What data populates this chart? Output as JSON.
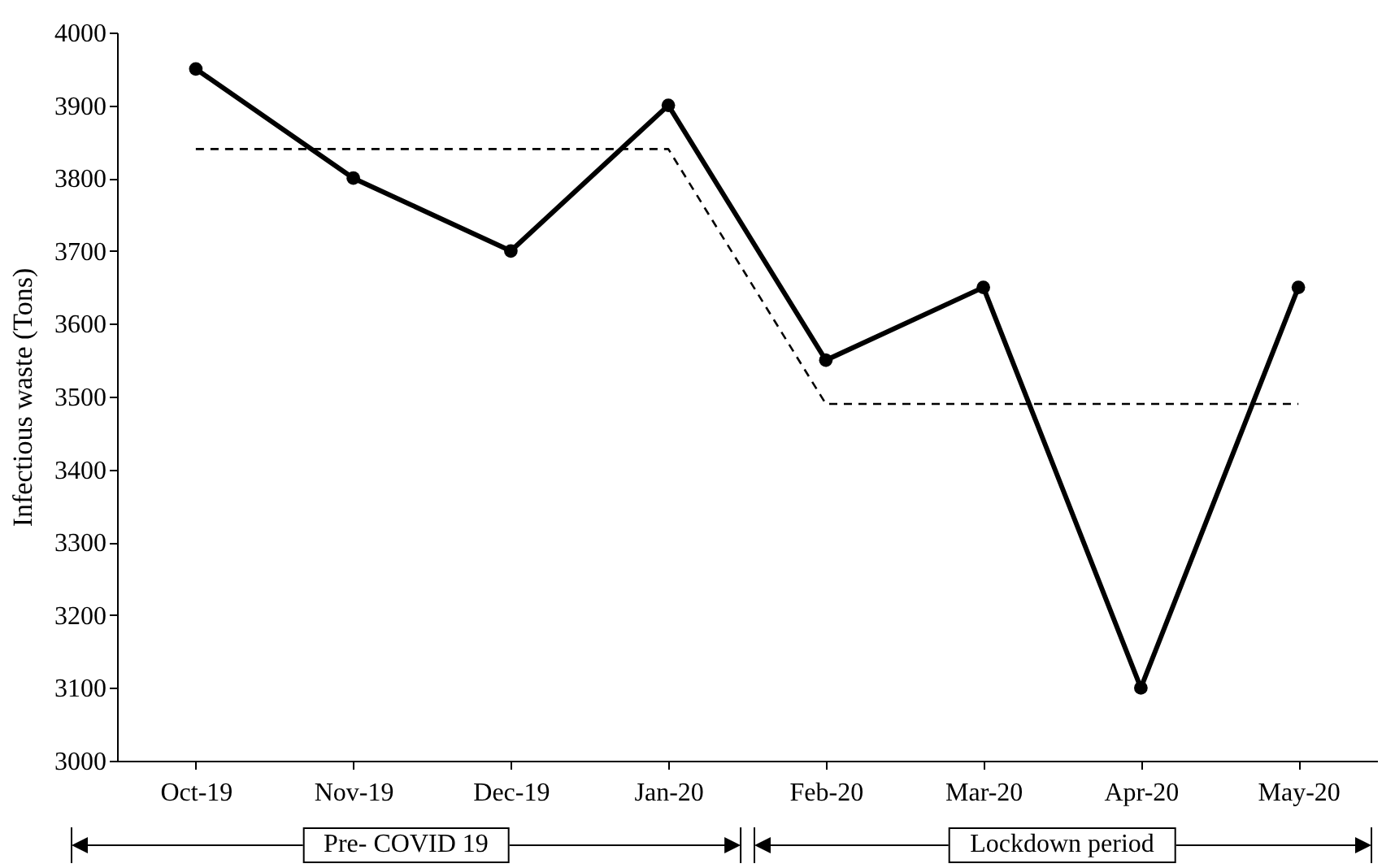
{
  "chart_data": {
    "type": "line",
    "ylabel": "Infectious waste (Tons)",
    "categories": [
      "Oct-19",
      "Nov-19",
      "Dec-19",
      "Jan-20",
      "Feb-20",
      "Mar-20",
      "Apr-20",
      "May-20"
    ],
    "series": [
      {
        "color": "#000000",
        "marker": "circle",
        "line_style": "solid",
        "values": [
          3950,
          3800,
          3700,
          3900,
          3550,
          3650,
          3100,
          3650
        ]
      },
      {
        "color": "#000000",
        "marker": "none",
        "line_style": "dashed",
        "values": [
          3840,
          3840,
          3840,
          3840,
          3490,
          3490,
          3490,
          3490
        ]
      }
    ],
    "ylim": [
      3000,
      4000
    ],
    "yticks": [
      3000,
      3100,
      3200,
      3300,
      3400,
      3500,
      3600,
      3700,
      3800,
      3900,
      4000
    ],
    "grid": false,
    "annotations": [
      "Pre- COVID 19",
      "Lockdown period"
    ]
  }
}
